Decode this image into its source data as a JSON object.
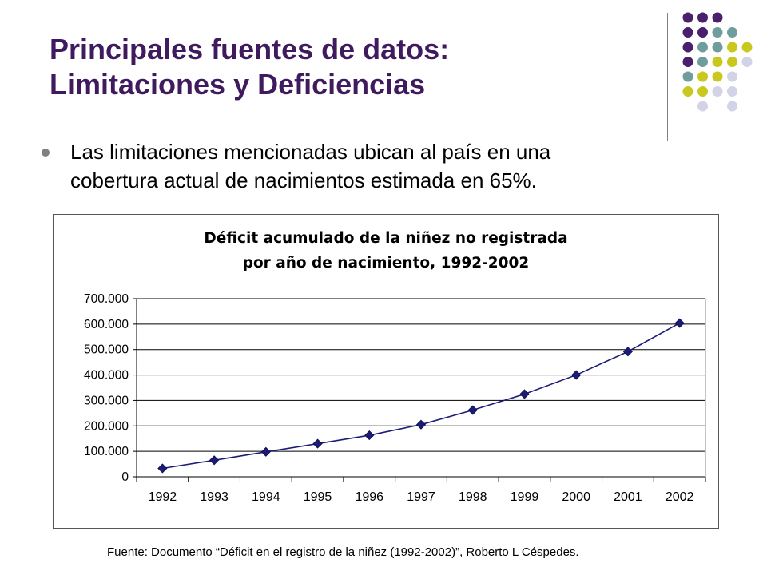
{
  "slide": {
    "title_line1": "Principales fuentes de datos:",
    "title_line2": "Limitaciones y Deficiencias",
    "bullet_line1": "Las limitaciones mencionadas ubican al país en una",
    "bullet_line2": "cobertura actual de nacimientos estimada en 65%.",
    "source": "Fuente: Documento “Déficit en el registro de la niñez (1992-2002)”, Roberto L Céspedes."
  },
  "colors": {
    "title": "#3f1a5e",
    "line": "#1c1c78",
    "marker": "#1c1c78",
    "dot_purple": "#4a1f6e",
    "dot_teal": "#6f9c9c",
    "dot_olive": "#c8c81e",
    "dot_lavender": "#d3d3e8"
  },
  "chart_data": {
    "type": "line",
    "title_line1": "Déficit acumulado de la niñez no registrada",
    "title_line2": "por año de nacimiento, 1992-2002",
    "categories": [
      "1992",
      "1993",
      "1994",
      "1995",
      "1996",
      "1997",
      "1998",
      "1999",
      "2000",
      "2001",
      "2002"
    ],
    "series": [
      {
        "values": [
          33000,
          65000,
          98000,
          130000,
          163000,
          205000,
          262000,
          325000,
          400000,
          492000,
          604000
        ]
      }
    ],
    "ylim": [
      0,
      700000
    ],
    "yticks": [
      0,
      100000,
      200000,
      300000,
      400000,
      500000,
      600000,
      700000
    ],
    "ytick_labels": [
      "0",
      "100.000",
      "200.000",
      "300.000",
      "400.000",
      "500.000",
      "600.000",
      "700.000"
    ],
    "grid": true,
    "legend": false
  }
}
